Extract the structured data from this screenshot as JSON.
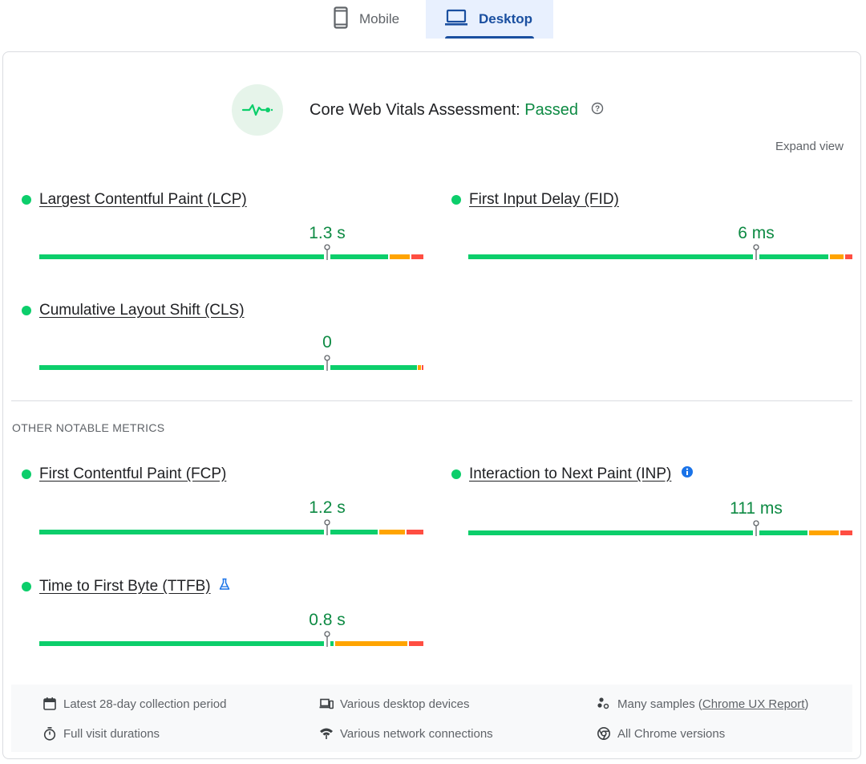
{
  "tabs": {
    "mobile": "Mobile",
    "desktop": "Desktop",
    "selected": "Desktop"
  },
  "assessment": {
    "label": "Core Web Vitals Assessment: ",
    "status": "Passed",
    "icon": "vitals-pulse-icon"
  },
  "expand_label": "Expand view",
  "colors": {
    "good": "#0cce6b",
    "needs_improvement": "#ffa400",
    "poor": "#ff4e42",
    "passed_text": "#0d8a43",
    "accent": "#1a4fa0"
  },
  "core_metrics": [
    {
      "name": "Largest Contentful Paint (LCP)",
      "value": "1.3 s",
      "rating": "good"
    },
    {
      "name": "First Input Delay (FID)",
      "value": "6 ms",
      "rating": "good"
    },
    {
      "name": "Cumulative Layout Shift (CLS)",
      "value": "0",
      "rating": "good"
    }
  ],
  "other_label": "OTHER NOTABLE METRICS",
  "other_metrics": [
    {
      "name": "First Contentful Paint (FCP)",
      "value": "1.2 s",
      "rating": "good"
    },
    {
      "name": "Interaction to Next Paint (INP)",
      "value": "111 ms",
      "rating": "good",
      "icon": "info-icon"
    },
    {
      "name": "Time to First Byte (TTFB)",
      "value": "0.8 s",
      "rating": "good",
      "icon": "lab-flask-icon"
    }
  ],
  "footer": {
    "period": "Latest 28-day collection period",
    "devices": "Various desktop devices",
    "samples_prefix": "Many samples (",
    "samples_link": "Chrome UX Report",
    "samples_suffix": ")",
    "durations": "Full visit durations",
    "network": "Various network connections",
    "versions": "All Chrome versions"
  }
}
